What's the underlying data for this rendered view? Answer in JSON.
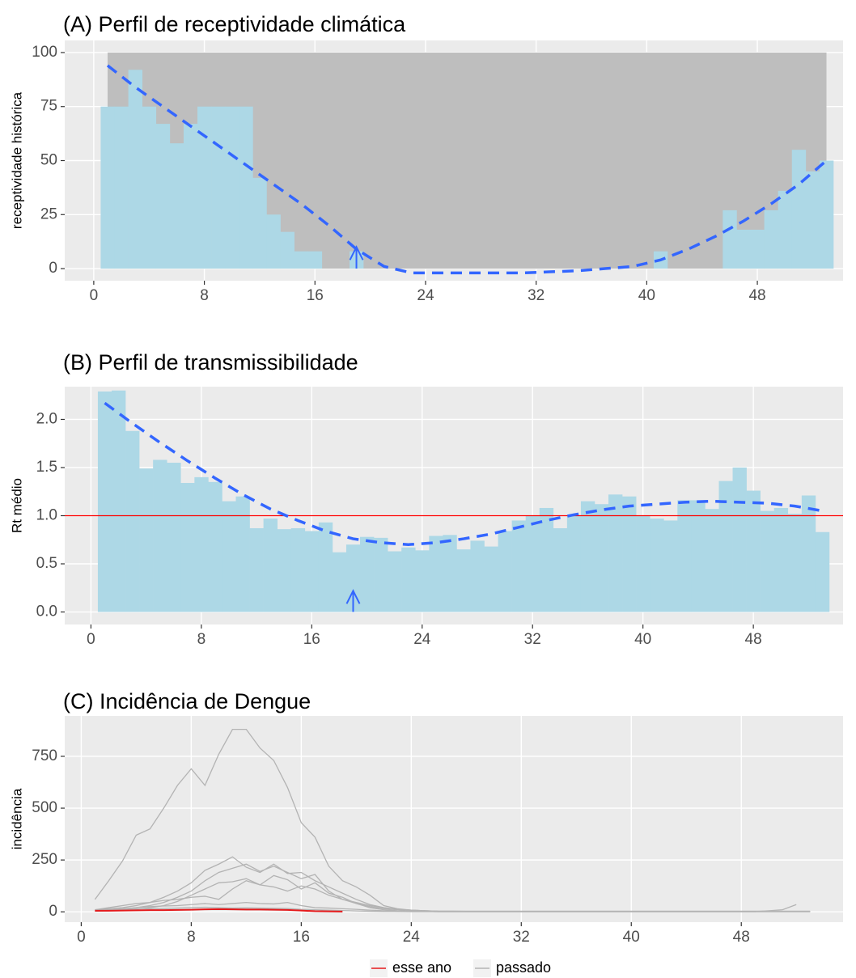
{
  "chart_data": [
    {
      "type": "bar",
      "title": "(A) Perfil de receptividade climática",
      "y_label": "receptividade histórica",
      "x": [
        1,
        2,
        3,
        4,
        5,
        6,
        7,
        8,
        9,
        10,
        11,
        12,
        13,
        14,
        15,
        16,
        17,
        18,
        19,
        20,
        21,
        22,
        23,
        24,
        25,
        26,
        27,
        28,
        29,
        30,
        31,
        32,
        33,
        34,
        35,
        36,
        37,
        38,
        39,
        40,
        41,
        42,
        43,
        44,
        45,
        46,
        47,
        48,
        49,
        50,
        51,
        52,
        53
      ],
      "values": [
        75,
        75,
        92,
        75,
        67,
        58,
        67,
        75,
        75,
        75,
        75,
        42,
        25,
        17,
        8,
        8,
        0,
        0,
        8,
        0,
        0,
        0,
        0,
        0,
        0,
        0,
        0,
        0,
        0,
        0,
        0,
        0,
        0,
        0,
        0,
        0,
        0,
        0,
        0,
        0,
        8,
        0,
        0,
        0,
        0,
        27,
        18,
        18,
        27,
        36,
        55,
        45,
        50
      ],
      "color": "#add8e6",
      "band": {
        "x": [
          1,
          53
        ],
        "y": [
          0,
          100
        ],
        "color": "#bebebe"
      },
      "smooth": {
        "x": [
          1,
          3,
          5,
          7,
          9,
          11,
          13,
          15,
          17,
          19,
          21,
          23,
          25,
          27,
          29,
          31,
          33,
          35,
          37,
          39,
          41,
          43,
          45,
          47,
          49,
          51,
          53
        ],
        "values": [
          94,
          84,
          75,
          66,
          57,
          48,
          39,
          30,
          20,
          9,
          1,
          -2,
          -2,
          -2,
          -2,
          -2,
          -1.5,
          -1,
          0,
          1,
          4,
          9,
          15,
          22,
          30,
          39,
          50
        ],
        "color": "#3366ff"
      },
      "arrow": {
        "x": 19,
        "y": [
          0,
          10
        ],
        "color": "#3366ff"
      },
      "xlim": [
        -2.1,
        54.2
      ],
      "ylim": [
        -5.6,
        105.6
      ],
      "xticks": [
        0,
        8,
        16,
        24,
        32,
        40,
        48
      ],
      "yticks": [
        0,
        25,
        50,
        75,
        100
      ],
      "grid": true
    },
    {
      "type": "bar",
      "title": "(B) Perfil de transmissibilidade",
      "y_label": "Rt médio",
      "x": [
        1,
        2,
        3,
        4,
        5,
        6,
        7,
        8,
        9,
        10,
        11,
        12,
        13,
        14,
        15,
        16,
        17,
        18,
        19,
        20,
        21,
        22,
        23,
        24,
        25,
        26,
        27,
        28,
        29,
        30,
        31,
        32,
        33,
        34,
        35,
        36,
        37,
        38,
        39,
        40,
        41,
        42,
        43,
        44,
        45,
        46,
        47,
        48,
        49,
        50,
        51,
        52,
        53
      ],
      "values": [
        2.29,
        2.3,
        1.88,
        1.49,
        1.58,
        1.55,
        1.34,
        1.4,
        1.35,
        1.15,
        1.2,
        0.87,
        0.97,
        0.86,
        0.87,
        0.84,
        0.93,
        0.62,
        0.7,
        0.78,
        0.77,
        0.63,
        0.67,
        0.64,
        0.79,
        0.8,
        0.65,
        0.74,
        0.68,
        0.84,
        0.95,
        1.0,
        1.08,
        0.87,
        1.0,
        1.15,
        1.12,
        1.22,
        1.2,
        1.0,
        0.97,
        0.95,
        1.16,
        1.16,
        1.07,
        1.36,
        1.5,
        1.26,
        1.05,
        1.08,
        1.02,
        1.21,
        0.83
      ],
      "color": "#add8e6",
      "hline": {
        "value": 1,
        "color": "#ff0000"
      },
      "smooth": {
        "x": [
          1,
          3,
          5,
          7,
          9,
          11,
          13,
          15,
          17,
          19,
          21,
          23,
          25,
          27,
          29,
          31,
          33,
          35,
          37,
          39,
          41,
          43,
          45,
          47,
          49,
          51,
          53
        ],
        "values": [
          2.17,
          1.96,
          1.76,
          1.57,
          1.39,
          1.22,
          1.07,
          0.95,
          0.84,
          0.76,
          0.72,
          0.7,
          0.72,
          0.76,
          0.81,
          0.88,
          0.95,
          1.01,
          1.06,
          1.1,
          1.12,
          1.14,
          1.15,
          1.14,
          1.13,
          1.1,
          1.05
        ],
        "color": "#3366ff"
      },
      "arrow": {
        "x": 19,
        "y": [
          0,
          0.22
        ],
        "color": "#3366ff"
      },
      "xlim": [
        -1.9,
        54.5
      ],
      "ylim": [
        -0.13,
        2.34
      ],
      "xticks": [
        0,
        8,
        16,
        24,
        32,
        40,
        48
      ],
      "yticks": [
        {
          "value": 0,
          "label": "0.0"
        },
        0.5,
        {
          "value": 1,
          "label": "1.0"
        },
        1.5,
        {
          "value": 2,
          "label": "2.0"
        }
      ],
      "grid": true
    },
    {
      "type": "line",
      "title": "(C) Incidência de Dengue",
      "y_label": "incidência",
      "x": [
        1,
        2,
        3,
        4,
        5,
        6,
        7,
        8,
        9,
        10,
        11,
        12,
        13,
        14,
        15,
        16,
        17,
        18,
        19,
        20,
        21,
        22,
        23,
        24,
        25,
        26,
        27,
        28,
        29,
        30,
        31,
        32,
        33,
        34,
        35,
        36,
        37,
        38,
        39,
        40,
        41,
        42,
        43,
        44,
        45,
        46,
        47,
        48,
        49,
        50,
        51,
        52,
        53
      ],
      "series": [
        {
          "name": "esse ano",
          "color": "#e41a1c",
          "values": [
            5,
            5,
            6,
            7,
            8,
            8,
            9,
            10,
            12,
            13,
            12,
            11,
            11,
            10,
            9,
            6,
            3,
            2,
            1,
            null,
            null,
            null,
            null,
            null,
            null,
            null,
            null,
            null,
            null,
            null,
            null,
            null,
            null,
            null,
            null,
            null,
            null,
            null,
            null,
            null,
            null,
            null,
            null,
            null,
            null,
            null,
            null,
            null,
            null,
            null,
            null,
            null,
            null
          ]
        },
        {
          "name": "passado",
          "color": "#b3b3b3",
          "lines": [
            {
              "values": [
                60,
                150,
                245,
                370,
                400,
                500,
                610,
                690,
                610,
                760,
                880,
                880,
                790,
                730,
                600,
                430,
                360,
                220,
                150,
                120,
                80,
                30,
                15,
                8,
                5,
                3,
                3,
                2,
                2,
                2,
                2,
                2,
                2,
                2,
                2,
                2,
                2,
                2,
                2,
                2,
                2,
                2,
                2,
                2,
                2,
                2,
                2,
                2,
                2,
                2,
                2,
                2,
                2
              ]
            },
            {
              "values": [
                10,
                15,
                20,
                30,
                45,
                70,
                100,
                140,
                200,
                230,
                265,
                215,
                190,
                230,
                185,
                190,
                150,
                120,
                90,
                60,
                35,
                20,
                12,
                8,
                5,
                3,
                3,
                3,
                3,
                3,
                3,
                3,
                3,
                3,
                3,
                3,
                3,
                3,
                3,
                3,
                3,
                3,
                3,
                3,
                3,
                3,
                3,
                3,
                3,
                3,
                3,
                3,
                3
              ]
            },
            {
              "values": [
                5,
                8,
                12,
                20,
                30,
                45,
                70,
                100,
                150,
                190,
                210,
                230,
                195,
                220,
                190,
                160,
                180,
                100,
                60,
                45,
                30,
                20,
                12,
                8,
                5,
                2,
                2,
                2,
                2,
                2,
                2,
                2,
                2,
                2,
                2,
                2,
                2,
                2,
                2,
                2,
                2,
                2,
                2,
                2,
                2,
                2,
                2,
                2,
                2,
                2,
                2,
                2,
                2
              ]
            },
            {
              "values": [
                3,
                5,
                8,
                12,
                20,
                30,
                50,
                80,
                110,
                140,
                145,
                160,
                130,
                175,
                155,
                110,
                140,
                90,
                70,
                40,
                25,
                15,
                10,
                6,
                4,
                2,
                2,
                2,
                2,
                2,
                2,
                2,
                2,
                2,
                2,
                2,
                2,
                2,
                2,
                2,
                2,
                2,
                2,
                2,
                2,
                2,
                2,
                2,
                2,
                2,
                2,
                2,
                2
              ]
            },
            {
              "values": [
                10,
                20,
                30,
                40,
                45,
                55,
                60,
                70,
                75,
                60,
                110,
                150,
                130,
                120,
                100,
                125,
                110,
                80,
                60,
                40,
                20,
                10,
                5,
                3,
                2,
                1,
                1,
                1,
                1,
                1,
                1,
                1,
                1,
                1,
                1,
                1,
                1,
                1,
                1,
                1,
                1,
                1,
                1,
                1,
                1,
                1,
                1,
                1,
                1,
                1,
                1,
                1,
                1
              ]
            },
            {
              "values": [
                5,
                10,
                15,
                20,
                25,
                28,
                30,
                35,
                40,
                35,
                40,
                45,
                40,
                38,
                45,
                30,
                20,
                18,
                15,
                12,
                8,
                5,
                3,
                2,
                2,
                1,
                1,
                1,
                1,
                1,
                1,
                1,
                1,
                1,
                1,
                1,
                1,
                1,
                1,
                1,
                1,
                1,
                1,
                1,
                1,
                1,
                1,
                1,
                1,
                5,
                10,
                35,
                null
              ]
            },
            {
              "values": [
                8,
                10,
                12,
                14,
                15,
                16,
                18,
                20,
                22,
                20,
                18,
                19,
                18,
                17,
                16,
                12,
                10,
                8,
                6,
                4,
                3,
                2,
                2,
                1,
                1,
                1,
                1,
                1,
                1,
                1,
                1,
                1,
                1,
                1,
                1,
                1,
                1,
                1,
                1,
                1,
                1,
                1,
                1,
                1,
                1,
                1,
                1,
                1,
                1,
                1,
                1,
                1,
                1
              ]
            }
          ]
        }
      ],
      "xlim": [
        -1.2,
        55.4
      ],
      "ylim": [
        -50,
        945
      ],
      "xticks": [
        0,
        8,
        16,
        24,
        32,
        40,
        48
      ],
      "yticks": [
        0,
        250,
        500,
        750
      ],
      "grid": true
    }
  ]
}
